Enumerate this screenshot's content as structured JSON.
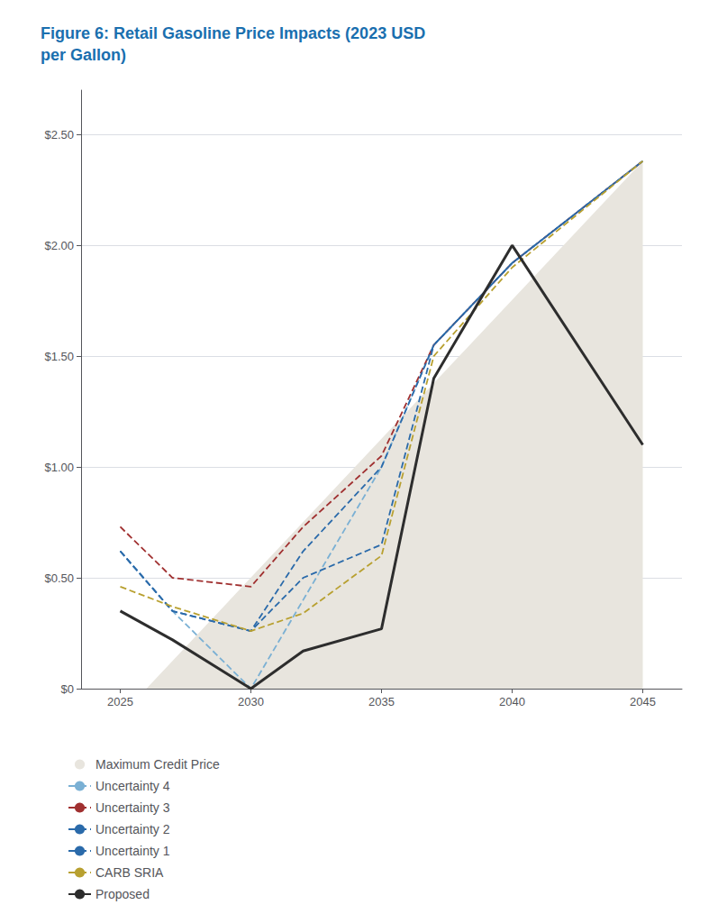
{
  "chart_data": {
    "type": "line",
    "title": "Figure 6: Retail Gasoline Price Impacts (2023 USD\nper Gallon)",
    "x": [
      2025,
      2027,
      2030,
      2032,
      2035,
      2037,
      2040,
      2045
    ],
    "series": [
      {
        "name": "Maximum Credit Price",
        "type": "area",
        "color": "#e8e5de",
        "x": [
          2026,
          2045
        ],
        "values": [
          0.0,
          2.38
        ]
      },
      {
        "name": "Uncertainty 4",
        "color": "#7ab0d4",
        "line_style": "dashed",
        "values": [
          0.62,
          0.35,
          0.0,
          0.4,
          1.0,
          1.55,
          1.92,
          2.38
        ]
      },
      {
        "name": "Uncertainty 3",
        "color": "#a03030",
        "line_style": "dashed",
        "values": [
          0.73,
          0.5,
          0.46,
          0.73,
          1.05,
          1.55,
          1.92,
          2.38
        ]
      },
      {
        "name": "Uncertainty 2",
        "color": "#2a6aaa",
        "line_style": "dashed",
        "values": [
          0.62,
          0.35,
          0.26,
          0.62,
          1.0,
          1.55,
          1.92,
          2.38
        ]
      },
      {
        "name": "Uncertainty 1",
        "color": "#2a6aaa",
        "line_style": "dashed",
        "values": [
          0.62,
          0.35,
          0.26,
          0.5,
          0.65,
          1.55,
          1.92,
          2.38
        ]
      },
      {
        "name": "CARB SRIA",
        "color": "#b8a030",
        "line_style": "dashed",
        "values": [
          0.46,
          0.37,
          0.26,
          0.34,
          0.6,
          1.5,
          1.9,
          2.38
        ]
      },
      {
        "name": "Proposed",
        "color": "#2d2d2d",
        "line_style": "solid",
        "values": [
          0.35,
          0.22,
          0.0,
          0.17,
          0.27,
          1.4,
          2.0,
          1.1
        ]
      }
    ],
    "xlim": [
      2023.5,
      2046.5
    ],
    "xticks": [
      2025,
      2030,
      2035,
      2040,
      2045
    ],
    "ylim": [
      0.0,
      2.7
    ],
    "yticks": [
      {
        "value": 0,
        "label": "$0"
      },
      {
        "value": 0.5,
        "label": "$0.50"
      },
      {
        "value": 1.0,
        "label": "$1.00"
      },
      {
        "value": 1.5,
        "label": "$1.50"
      },
      {
        "value": 2.0,
        "label": "$2.00"
      },
      {
        "value": 2.5,
        "label": "$2.50"
      }
    ],
    "grid": true,
    "legend": "bottom"
  }
}
